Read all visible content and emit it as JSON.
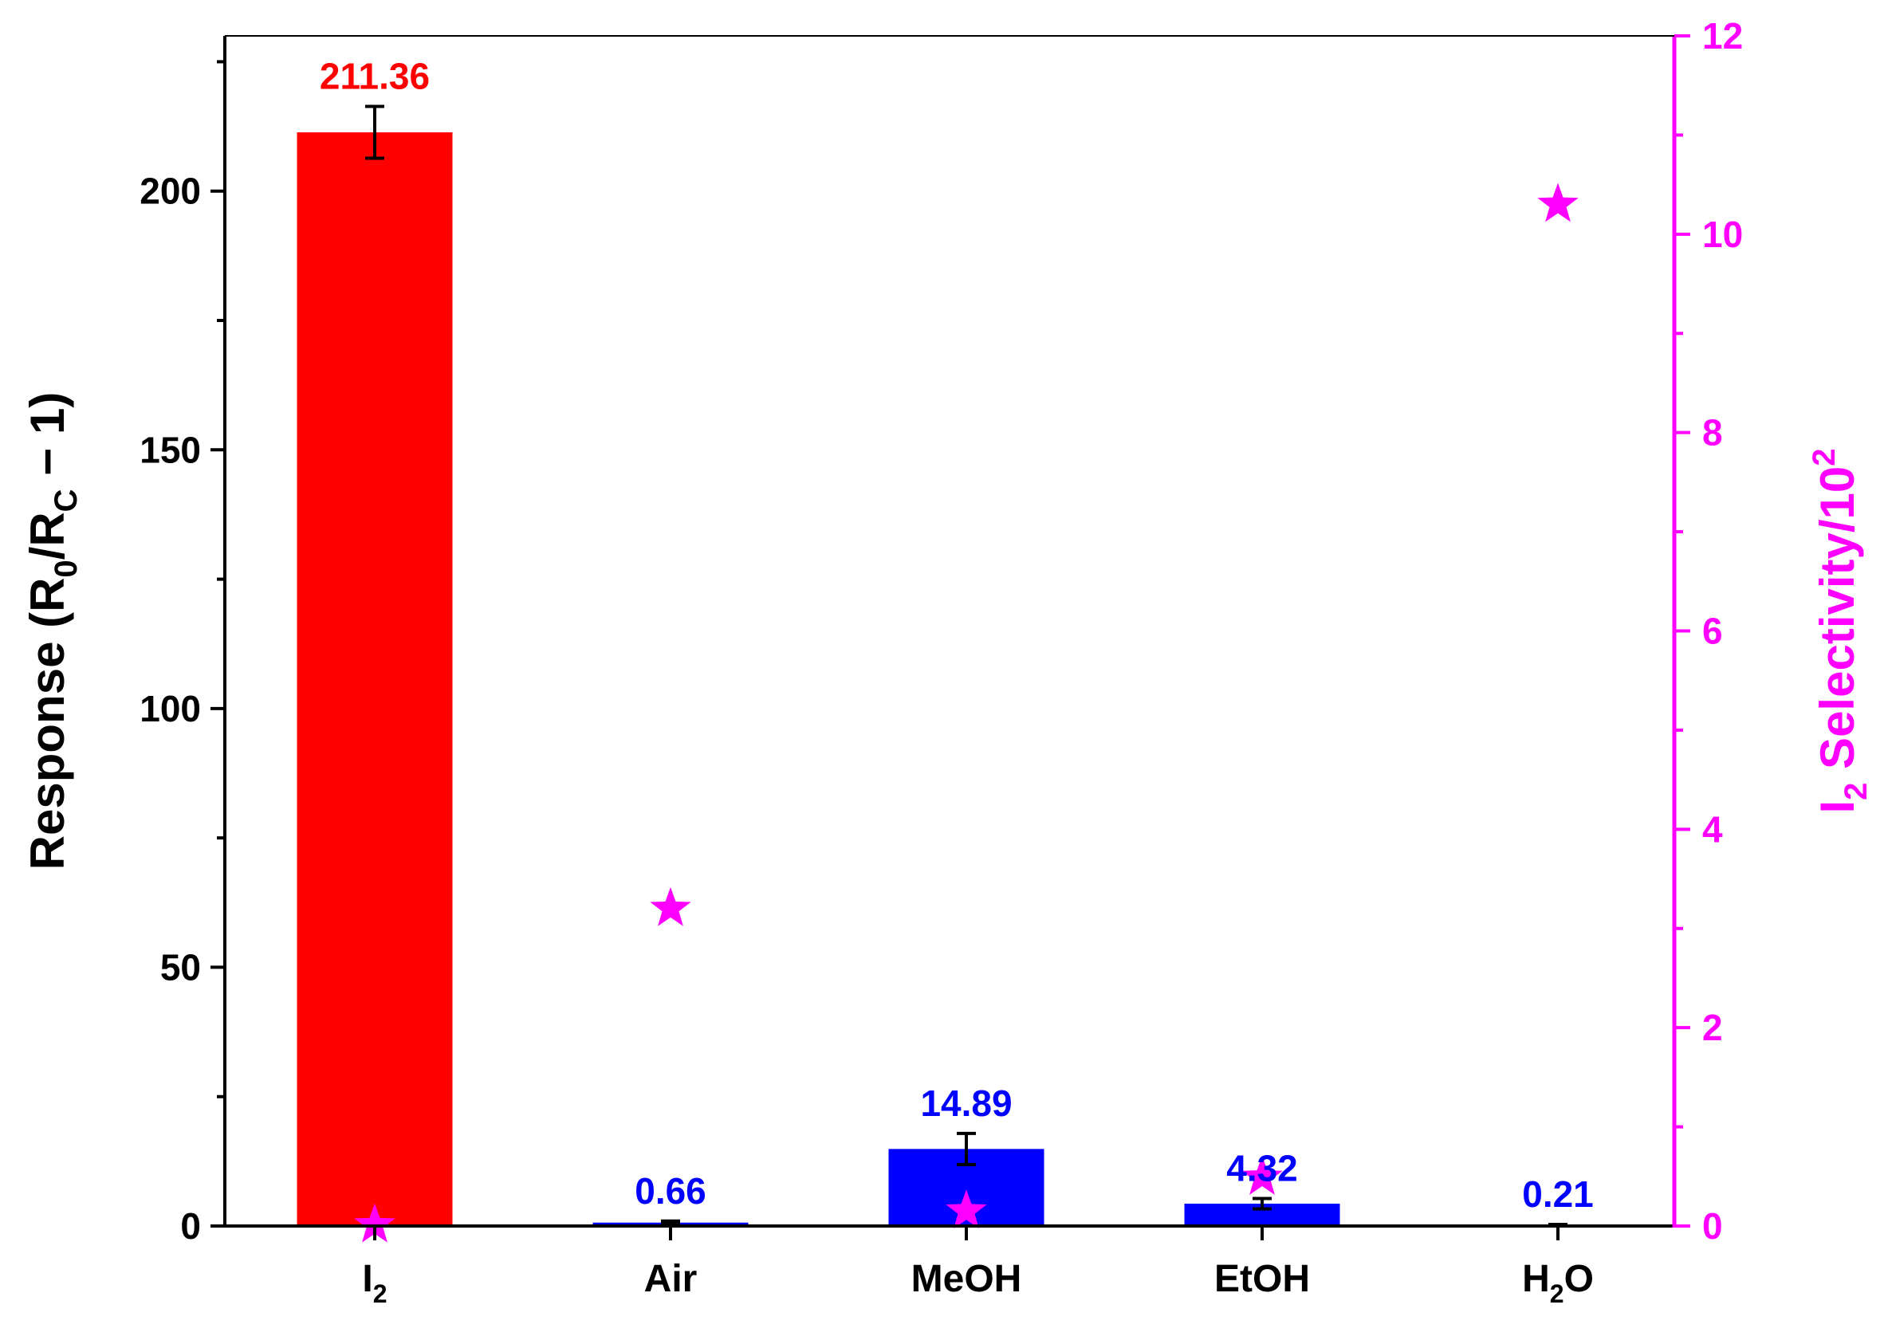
{
  "chart_data": {
    "type": "bar",
    "categories": [
      "I₂",
      "Air",
      "MeOH",
      "EtOH",
      "H₂O"
    ],
    "category_labels": [
      {
        "main": "I",
        "sub": "2",
        "tail": ""
      },
      {
        "main": "Air",
        "sub": "",
        "tail": ""
      },
      {
        "main": "MeOH",
        "sub": "",
        "tail": ""
      },
      {
        "main": "EtOH",
        "sub": "",
        "tail": ""
      },
      {
        "main": "H",
        "sub": "2",
        "tail": "O"
      }
    ],
    "series": [
      {
        "axis": "left",
        "kind": "bar",
        "values": [
          211.36,
          0.66,
          14.89,
          4.32,
          0.21
        ],
        "errors": [
          5,
          0.3,
          3,
          1,
          0.1
        ],
        "colors": [
          "#ff0000",
          "#0000ff",
          "#0000ff",
          "#0000ff",
          "#0000ff"
        ]
      },
      {
        "axis": "right",
        "kind": "scatter",
        "marker": "star",
        "values": [
          0.01,
          3.2,
          0.15,
          0.49,
          10.3
        ],
        "color": "#ff00ff"
      }
    ],
    "data_labels": [
      "211.36",
      "0.66",
      "14.89",
      "4.32",
      "0.21"
    ],
    "data_label_colors": [
      "#ff0000",
      "#0000ff",
      "#0000ff",
      "#0000ff",
      "#0000ff"
    ],
    "ylabel": "Response (R0/RC − 1)",
    "ylabel_parts": {
      "pre": "Response (R",
      "sub1": "0",
      "mid": "/R",
      "sub2": "C",
      "post": " − 1)"
    },
    "ylim": [
      0,
      230
    ],
    "yticks": [
      0,
      50,
      100,
      150,
      200
    ],
    "ylabel_right": "I2 Selectivity/10^2",
    "ylabel_right_parts": {
      "pre": "I",
      "sub": "2",
      "mid": " Selectivity/10",
      "sup": "2"
    },
    "ylim_right": [
      0,
      12
    ],
    "yticks_right": [
      0,
      2,
      4,
      6,
      8,
      10,
      12
    ],
    "right_axis_color": "#ff00ff",
    "left_axis_color": "#000000",
    "grid": false,
    "legend": "none"
  }
}
